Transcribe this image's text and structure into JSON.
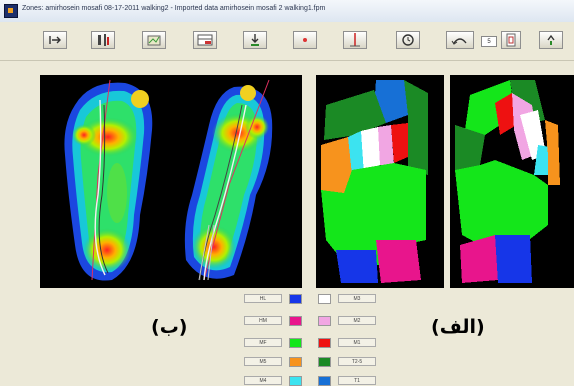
{
  "window": {
    "title": "Zones: amirhosein mosafi 08-17-2011 walking2 - Imported data amirhosein mosafi 2 walking1.fpm"
  },
  "toolbar": {
    "buttons": [
      {
        "name": "tb-import-icon"
      },
      {
        "name": "tb-print-icon"
      },
      {
        "name": "tb-chart-icon"
      },
      {
        "name": "tb-table-icon"
      },
      {
        "name": "tb-export-icon"
      },
      {
        "name": "tb-marker-icon"
      },
      {
        "name": "tb-line-icon"
      },
      {
        "name": "tb-clock-icon"
      },
      {
        "name": "tb-rotate-icon"
      },
      {
        "name": "tb-page-icon"
      },
      {
        "name": "tb-help-icon"
      }
    ],
    "zoom_value": "5"
  },
  "captions": {
    "left": "(ب)",
    "right": "(الف)"
  },
  "legend_left": [
    {
      "label": "HL",
      "color": "#1636e8"
    },
    {
      "label": "HM",
      "color": "#e8158c"
    },
    {
      "label": "MF",
      "color": "#14e61a"
    },
    {
      "label": "M5",
      "color": "#f7931d"
    },
    {
      "label": "M4",
      "color": "#3ce3f0"
    }
  ],
  "legend_right": [
    {
      "label": "M3",
      "color": "#ffffff"
    },
    {
      "label": "M2",
      "color": "#f1a6e3"
    },
    {
      "label": "M1",
      "color": "#ee1111"
    },
    {
      "label": "T2-5",
      "color": "#1b8a25"
    },
    {
      "label": "T1",
      "color": "#1770d6"
    }
  ]
}
